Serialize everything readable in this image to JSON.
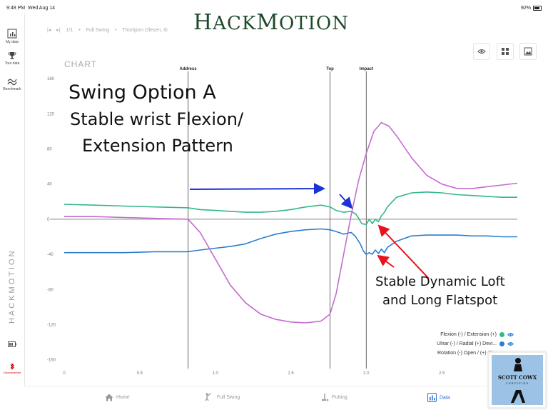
{
  "status_bar": {
    "time": "9:48 PM",
    "date": "Wed Aug 14",
    "battery": "92%"
  },
  "brand": {
    "first_letter_1": "H",
    "rest_1": "ACK",
    "first_letter_2": "M",
    "rest_2": "OTION"
  },
  "sidebar": {
    "items": [
      {
        "label": "My data",
        "icon": "chart-box-icon"
      },
      {
        "label": "Tour data",
        "icon": "trophy-icon"
      },
      {
        "label": "Benchmark",
        "icon": "benchmark-icon"
      }
    ],
    "vertical_brand": "HACKMOTION",
    "bottom_label": "Disconnected"
  },
  "breadcrumb": {
    "counter": "1/1",
    "separator": "•",
    "swing": "Full Swing",
    "player": "Thorbjorn Olesen, 6i"
  },
  "toolbar": {
    "icons": [
      "eye-icon",
      "grid-icon",
      "image-icon"
    ]
  },
  "chart_title": "CHART",
  "colors": {
    "flexion": "#33b889",
    "ulnar": "#2a7fcf",
    "rotation": "#c46bd0",
    "blue_arrow": "#1a32d6",
    "red_arrow": "#e8121c",
    "brand": "#1f4a2a"
  },
  "chart_data": {
    "type": "line",
    "xlim": [
      0,
      3.0
    ],
    "ylim": [
      -170,
      165
    ],
    "x_ticks": [
      0,
      0.5,
      1.0,
      1.5,
      2.0,
      2.5
    ],
    "x_tick_labels": [
      "0",
      "0.5",
      "1.0",
      "1.5",
      "2.0",
      "2.5"
    ],
    "y_ticks": [
      160,
      120,
      80,
      40,
      0,
      -40,
      -80,
      -120,
      -160
    ],
    "y_tick_labels": [
      "160",
      "120",
      "80",
      "40",
      "0",
      "-40",
      "-80",
      "-120",
      "-160"
    ],
    "grid": false,
    "events": [
      {
        "label": "Address",
        "x": 0.82
      },
      {
        "label": "Top",
        "x": 1.76
      },
      {
        "label": "Impact",
        "x": 2.0
      }
    ],
    "series": [
      {
        "name": "Flexion (-) / Extension (+)",
        "color_key": "flexion",
        "x": [
          0,
          0.2,
          0.4,
          0.6,
          0.82,
          0.9,
          1.0,
          1.1,
          1.2,
          1.3,
          1.4,
          1.5,
          1.6,
          1.7,
          1.76,
          1.8,
          1.85,
          1.9,
          1.93,
          1.95,
          1.97,
          2.0,
          2.02,
          2.04,
          2.06,
          2.08,
          2.1,
          2.12,
          2.14,
          2.2,
          2.3,
          2.4,
          2.5,
          2.6,
          2.7,
          2.8,
          2.9,
          3.0
        ],
        "y": [
          17,
          16,
          15,
          14,
          13,
          11,
          10,
          9,
          8,
          8,
          9,
          11,
          14,
          16,
          14,
          10,
          8,
          9,
          6,
          1,
          -5,
          -6,
          0,
          -5,
          0,
          -3,
          4,
          8,
          14,
          25,
          30,
          31,
          30,
          28,
          27,
          26,
          25,
          25
        ]
      },
      {
        "name": "Ulnar (-) / Radial (+) Devi...",
        "color_key": "ulnar",
        "x": [
          0,
          0.2,
          0.4,
          0.6,
          0.82,
          0.9,
          1.0,
          1.1,
          1.2,
          1.3,
          1.4,
          1.5,
          1.6,
          1.7,
          1.76,
          1.8,
          1.85,
          1.9,
          1.93,
          1.96,
          1.98,
          2.0,
          2.02,
          2.04,
          2.06,
          2.08,
          2.1,
          2.12,
          2.14,
          2.2,
          2.3,
          2.4,
          2.5,
          2.6,
          2.7,
          2.8,
          2.9,
          3.0
        ],
        "y": [
          -38,
          -38,
          -38,
          -37,
          -37,
          -35,
          -33,
          -31,
          -28,
          -22,
          -17,
          -14,
          -12,
          -11,
          -12,
          -14,
          -17,
          -15,
          -20,
          -28,
          -36,
          -40,
          -38,
          -40,
          -35,
          -39,
          -34,
          -38,
          -32,
          -25,
          -19,
          -18,
          -18,
          -18,
          -19,
          -19,
          -20,
          -20
        ]
      },
      {
        "name": "Rotation (-) Open / (+) Cl...",
        "color_key": "rotation",
        "x": [
          0,
          0.2,
          0.4,
          0.6,
          0.82,
          0.9,
          1.0,
          1.1,
          1.2,
          1.3,
          1.4,
          1.5,
          1.6,
          1.7,
          1.76,
          1.8,
          1.85,
          1.9,
          1.95,
          2.0,
          2.05,
          2.1,
          2.15,
          2.2,
          2.3,
          2.4,
          2.5,
          2.6,
          2.7,
          2.8,
          2.9,
          3.0
        ],
        "y": [
          3,
          3,
          2,
          1,
          0,
          -15,
          -45,
          -75,
          -95,
          -108,
          -114,
          -117,
          -118,
          -116,
          -108,
          -85,
          -40,
          5,
          45,
          75,
          100,
          110,
          106,
          95,
          70,
          50,
          40,
          35,
          35,
          37,
          39,
          41
        ]
      }
    ]
  },
  "annotations": {
    "heading_1": "Swing Option A",
    "heading_2": "Stable wrist Flexion/",
    "heading_3": "Extension Pattern",
    "note_1": "Stable Dynamic Loft",
    "note_2": "and Long Flatspot"
  },
  "legend": [
    {
      "label": "Flexion (-) / Extension (+)",
      "color_key": "flexion"
    },
    {
      "label": "Ulnar (-) / Radial (+) Devi...",
      "color_key": "ulnar"
    },
    {
      "label": "Rotation (-) Open / (+) Cl...",
      "color_key": "rotation"
    }
  ],
  "tabs": [
    {
      "label": "Home",
      "icon": "home-icon",
      "active": false
    },
    {
      "label": "Full Swing",
      "icon": "golfer-icon",
      "active": false
    },
    {
      "label": "Putting",
      "icon": "putter-icon",
      "active": false
    },
    {
      "label": "Data",
      "icon": "data-icon",
      "active": true
    }
  ],
  "certificate": {
    "name": "SCOTT COWX",
    "sub": "CERTIFIED"
  }
}
